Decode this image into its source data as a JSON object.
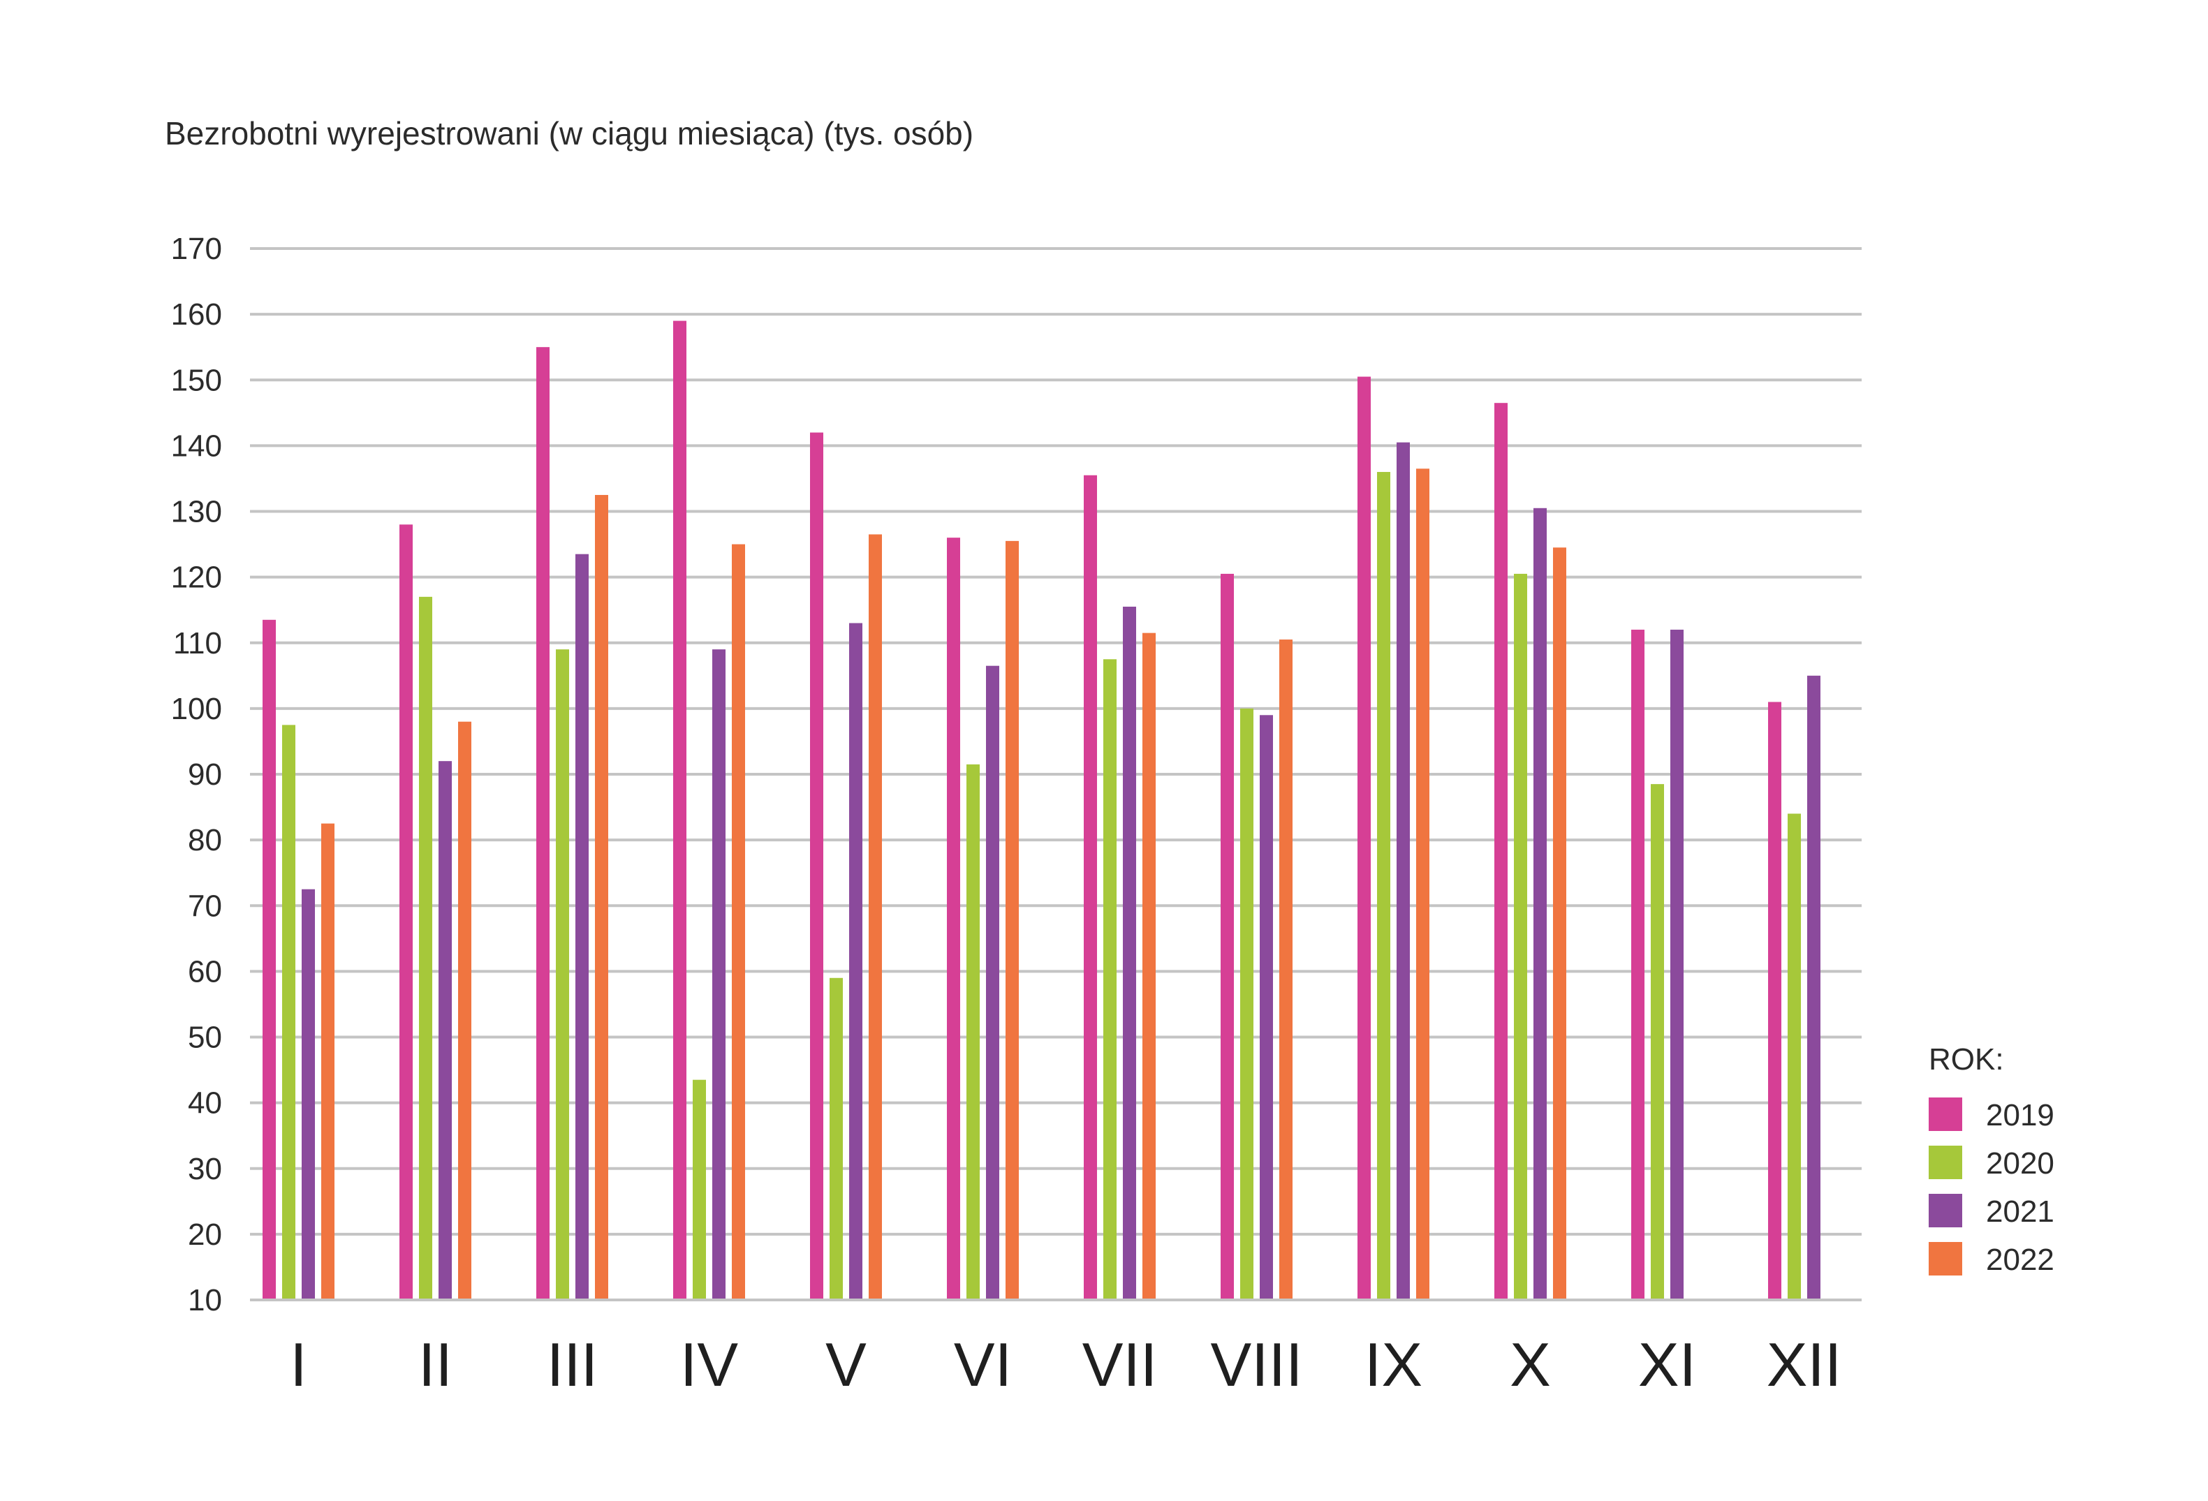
{
  "chart_data": {
    "type": "bar",
    "title": "Bezrobotni wyrejestrowani (w ciągu miesiąca) (tys. osób)",
    "xlabel": "",
    "ylabel": "",
    "ylim": [
      10,
      170
    ],
    "yticks": [
      10,
      20,
      30,
      40,
      50,
      60,
      70,
      80,
      90,
      100,
      110,
      120,
      130,
      140,
      150,
      160,
      170
    ],
    "grid": true,
    "legend_position": "bottom-right",
    "legend_title": "ROK:",
    "categories": [
      "I",
      "II",
      "III",
      "IV",
      "V",
      "VI",
      "VII",
      "VIII",
      "IX",
      "X",
      "XI",
      "XII"
    ],
    "series": [
      {
        "name": "2019",
        "color": "#d63f95",
        "values": [
          113.5,
          128,
          155,
          159,
          142,
          126,
          135.5,
          120.5,
          150.5,
          146.5,
          112,
          101
        ]
      },
      {
        "name": "2020",
        "color": "#a6c83a",
        "values": [
          97.5,
          117,
          109,
          43.5,
          59,
          91.5,
          107.5,
          100,
          136,
          120.5,
          88.5,
          84
        ]
      },
      {
        "name": "2021",
        "color": "#8b4a9c",
        "values": [
          72.5,
          92,
          123.5,
          109,
          113,
          106.5,
          115.5,
          99,
          140.5,
          130.5,
          112,
          105
        ]
      },
      {
        "name": "2022",
        "color": "#f07540",
        "values": [
          82.5,
          98,
          132.5,
          125,
          126.5,
          125.5,
          111.5,
          110.5,
          136.5,
          124.5,
          null,
          null
        ]
      }
    ]
  }
}
